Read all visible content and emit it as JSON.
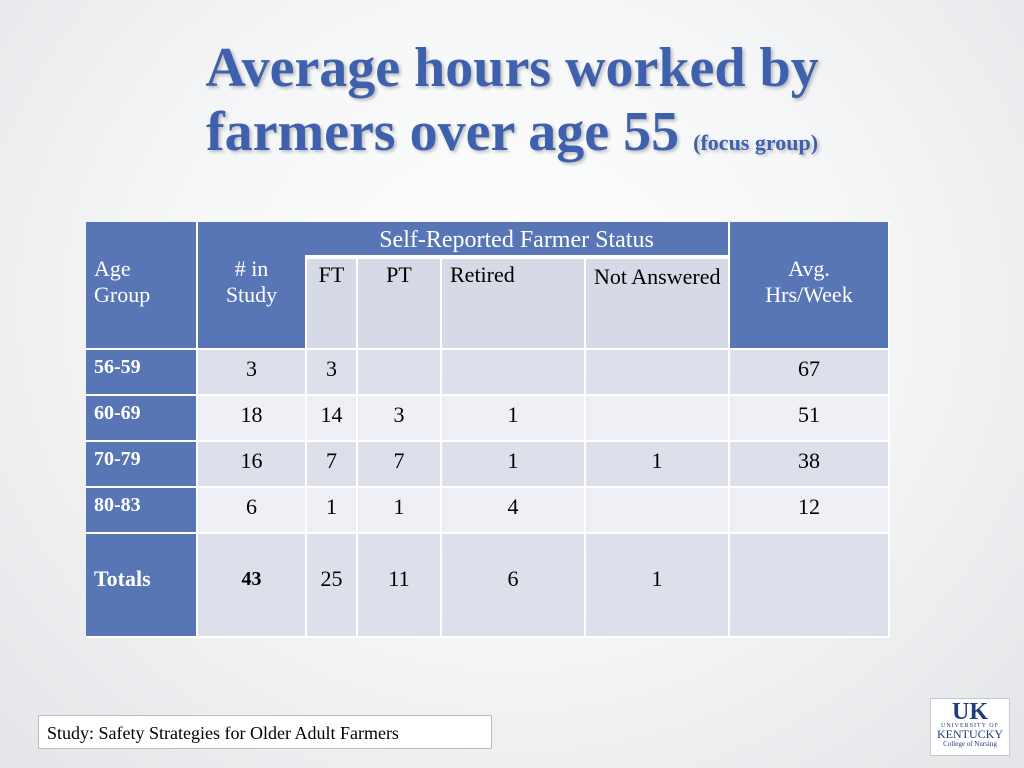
{
  "title": {
    "line1": "Average hours worked by",
    "line2": "farmers over age 55",
    "suffix": "(focus group)"
  },
  "table": {
    "col_age": [
      "Age",
      "Group"
    ],
    "col_study": [
      "# in",
      "Study"
    ],
    "status_header": "Self-Reported Farmer Status",
    "status_cols": [
      "FT",
      "PT",
      "Retired",
      "Not Answered"
    ],
    "col_avg": [
      "Avg.",
      "Hrs/Week"
    ],
    "rows": [
      {
        "age": "56-59",
        "study": "3",
        "ft": "3",
        "pt": "",
        "retired": "",
        "not_answered": "",
        "avg": "67"
      },
      {
        "age": "60-69",
        "study": "18",
        "ft": "14",
        "pt": "3",
        "retired": "1",
        "not_answered": "",
        "avg": "51"
      },
      {
        "age": "70-79",
        "study": "16",
        "ft": "7",
        "pt": "7",
        "retired": "1",
        "not_answered": "1",
        "avg": "38"
      },
      {
        "age": "80-83",
        "study": "6",
        "ft": "1",
        "pt": "1",
        "retired": "4",
        "not_answered": "",
        "avg": "12"
      }
    ],
    "totals": {
      "label": "Totals",
      "study": "43",
      "ft": "25",
      "pt": "11",
      "retired": "6",
      "not_answered": "1",
      "avg": ""
    }
  },
  "footer": "Study:  Safety Strategies for Older Adult Farmers",
  "logo": {
    "mark": "UK",
    "university_of": "UNIVERSITY OF",
    "kentucky": "KENTUCKY",
    "college": "College of Nursing"
  },
  "colors": {
    "title": "#3f61ad",
    "header_bg": "#5876b5",
    "row_band_a": "#dde0ea",
    "row_band_b": "#eef0f5"
  }
}
